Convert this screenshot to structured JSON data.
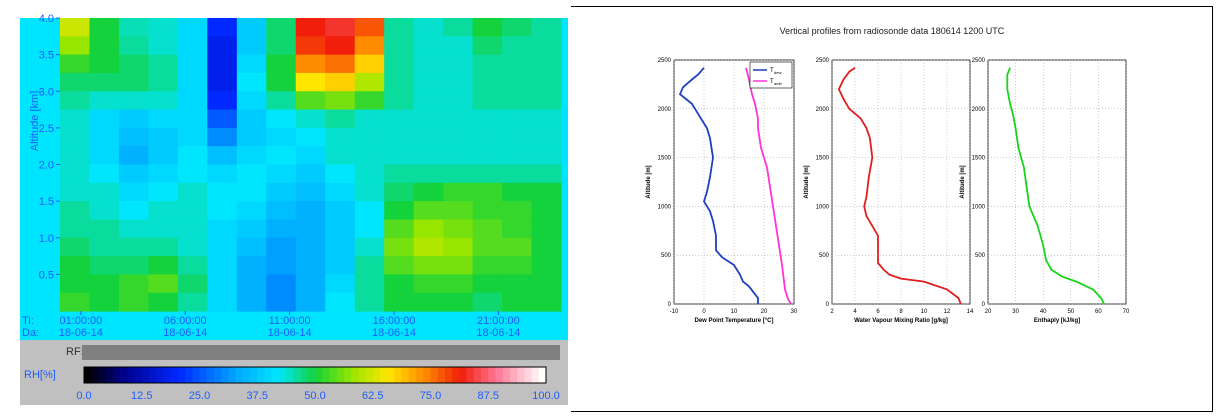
{
  "left_panel": {
    "ylabel": "Altitude [km]",
    "y_ticks": [
      "4.0",
      "3.5",
      "3.0",
      "2.5",
      "2.0",
      "1.5",
      "1.0",
      "0.5"
    ],
    "ti_label": "Ti:",
    "da_label": "Da:",
    "x_times": [
      "01:00:00",
      "06:00:00",
      "11:00:00",
      "16:00:00",
      "21:00:00"
    ],
    "x_dates": [
      "18-06-14",
      "18-06-14",
      "18-06-14",
      "18-06-14",
      "18-06-14"
    ],
    "rf_label": "RF:",
    "rh_label": "RH[%]",
    "colorbar_ticks": [
      "0.0",
      "12.5",
      "25.0",
      "37.5",
      "50.0",
      "62.5",
      "75.0",
      "87.5",
      "100.0"
    ],
    "colors": {
      "panel_bg": "#00e5ff",
      "axis_text": "#1e5cff",
      "frame_bg": "#c0c0c0",
      "bar_gray": "#808080"
    }
  },
  "chart_data": [
    {
      "type": "heatmap",
      "title": "",
      "xlabel": "",
      "ylabel": "Altitude [km]",
      "y_range_km": [
        0,
        4.0
      ],
      "x_range": [
        "18-06-14 00:00",
        "18-06-14 24:00"
      ],
      "colorbar": {
        "label": "RH[%]",
        "range": [
          0,
          100
        ]
      },
      "rows_altitude_km": [
        4.0,
        3.75,
        3.5,
        3.25,
        3.0,
        2.75,
        2.5,
        2.25,
        2.0,
        1.75,
        1.5,
        1.25,
        1.0,
        0.75,
        0.5,
        0.25
      ],
      "cols_hour_utc": [
        0,
        1.5,
        3,
        4.5,
        6,
        7.5,
        9,
        10.5,
        12,
        13.5,
        15,
        16.5,
        18,
        19.5,
        21,
        22.5,
        24
      ],
      "rh_grid": [
        [
          62,
          50,
          45,
          44,
          40,
          20,
          38,
          48,
          82,
          84,
          78,
          46,
          44,
          46,
          50,
          48,
          46
        ],
        [
          58,
          50,
          46,
          44,
          40,
          18,
          38,
          48,
          80,
          82,
          74,
          46,
          44,
          44,
          48,
          46,
          46
        ],
        [
          52,
          50,
          48,
          46,
          40,
          18,
          40,
          50,
          74,
          76,
          68,
          46,
          44,
          44,
          46,
          46,
          46
        ],
        [
          48,
          48,
          48,
          46,
          40,
          18,
          42,
          50,
          66,
          68,
          60,
          46,
          44,
          44,
          46,
          46,
          46
        ],
        [
          46,
          44,
          44,
          44,
          40,
          20,
          40,
          46,
          54,
          56,
          52,
          46,
          44,
          44,
          46,
          46,
          46
        ],
        [
          44,
          40,
          38,
          40,
          40,
          25,
          38,
          42,
          44,
          46,
          44,
          44,
          44,
          44,
          44,
          44,
          44
        ],
        [
          44,
          40,
          36,
          38,
          40,
          30,
          38,
          40,
          42,
          44,
          44,
          44,
          44,
          44,
          44,
          44,
          44
        ],
        [
          44,
          40,
          34,
          38,
          42,
          36,
          40,
          42,
          40,
          44,
          44,
          44,
          44,
          44,
          44,
          44,
          44
        ],
        [
          44,
          42,
          38,
          40,
          42,
          40,
          42,
          40,
          38,
          42,
          44,
          46,
          46,
          46,
          46,
          46,
          46
        ],
        [
          44,
          44,
          40,
          42,
          44,
          42,
          42,
          38,
          36,
          40,
          44,
          48,
          50,
          52,
          52,
          50,
          50
        ],
        [
          46,
          44,
          42,
          44,
          44,
          42,
          40,
          36,
          34,
          38,
          42,
          50,
          54,
          54,
          52,
          52,
          50
        ],
        [
          46,
          46,
          44,
          44,
          44,
          40,
          38,
          34,
          34,
          38,
          42,
          54,
          58,
          56,
          54,
          52,
          50
        ],
        [
          48,
          46,
          46,
          46,
          44,
          40,
          36,
          32,
          34,
          38,
          44,
          56,
          60,
          58,
          54,
          54,
          50
        ],
        [
          50,
          48,
          48,
          50,
          46,
          40,
          34,
          32,
          34,
          38,
          46,
          54,
          56,
          56,
          52,
          52,
          50
        ],
        [
          50,
          50,
          52,
          54,
          48,
          40,
          34,
          30,
          34,
          40,
          46,
          50,
          52,
          52,
          50,
          50,
          50
        ],
        [
          52,
          50,
          52,
          50,
          46,
          40,
          34,
          30,
          34,
          42,
          46,
          50,
          50,
          50,
          48,
          50,
          50
        ]
      ]
    },
    {
      "type": "line",
      "title": "Vertical profiles from radiosonde data 180614 1200 UTC",
      "xlabel": "Dew Point Temperature [°C]",
      "ylabel": "Altitude [m]",
      "xlim": [
        -10,
        30
      ],
      "ylim": [
        0,
        2500
      ],
      "x_ticks": [
        "-10",
        "0",
        "10",
        "20",
        "30"
      ],
      "y_ticks": [
        "0",
        "500",
        "1000",
        "1500",
        "2000",
        "2500"
      ],
      "series": [
        {
          "name": "Tdew",
          "color": "#1f3fbf",
          "points": [
            [
              18,
              0
            ],
            [
              18,
              60
            ],
            [
              15,
              180
            ],
            [
              13,
              230
            ],
            [
              12,
              300
            ],
            [
              10,
              400
            ],
            [
              6,
              480
            ],
            [
              4,
              550
            ],
            [
              4,
              700
            ],
            [
              3,
              850
            ],
            [
              2,
              950
            ],
            [
              0,
              1050
            ],
            [
              1,
              1150
            ],
            [
              2,
              1300
            ],
            [
              3,
              1500
            ],
            [
              2,
              1700
            ],
            [
              1,
              1800
            ],
            [
              0,
              1850
            ],
            [
              -2,
              1950
            ],
            [
              -4,
              2050
            ],
            [
              -6,
              2100
            ],
            [
              -8,
              2150
            ],
            [
              -7,
              2220
            ],
            [
              -4,
              2300
            ],
            [
              -2,
              2350
            ],
            [
              0,
              2420
            ]
          ]
        },
        {
          "name": "Tamb",
          "color": "#ff33d9",
          "points": [
            [
              29,
              0
            ],
            [
              28,
              50
            ],
            [
              27,
              150
            ],
            [
              26,
              400
            ],
            [
              25,
              600
            ],
            [
              24,
              800
            ],
            [
              23,
              1000
            ],
            [
              22,
              1200
            ],
            [
              21,
              1400
            ],
            [
              19,
              1600
            ],
            [
              18,
              1800
            ],
            [
              18,
              1900
            ],
            [
              17,
              2050
            ],
            [
              16,
              2150
            ],
            [
              15,
              2300
            ],
            [
              14,
              2420
            ]
          ]
        }
      ],
      "legend": "top-right"
    },
    {
      "type": "line",
      "title": "",
      "xlabel": "Water Vapour Mixing Ratio [g/kg]",
      "ylabel": "Altitude [m]",
      "xlim": [
        2,
        14
      ],
      "ylim": [
        0,
        2500
      ],
      "x_ticks": [
        "2",
        "4",
        "6",
        "8",
        "10",
        "12",
        "14"
      ],
      "y_ticks": [
        "0",
        "500",
        "1000",
        "1500",
        "2000",
        "2500"
      ],
      "series": [
        {
          "name": "",
          "color": "#e01e1e",
          "points": [
            [
              13.2,
              0
            ],
            [
              13,
              60
            ],
            [
              12,
              150
            ],
            [
              10,
              230
            ],
            [
              8,
              260
            ],
            [
              7,
              300
            ],
            [
              6.5,
              350
            ],
            [
              6,
              420
            ],
            [
              6,
              550
            ],
            [
              6,
              700
            ],
            [
              5.5,
              800
            ],
            [
              5,
              900
            ],
            [
              4.8,
              1000
            ],
            [
              5,
              1100
            ],
            [
              5.2,
              1300
            ],
            [
              5.5,
              1500
            ],
            [
              5.3,
              1700
            ],
            [
              5,
              1800
            ],
            [
              4.5,
              1900
            ],
            [
              3.5,
              2000
            ],
            [
              3,
              2100
            ],
            [
              2.6,
              2200
            ],
            [
              3,
              2300
            ],
            [
              3.5,
              2380
            ],
            [
              4,
              2420
            ]
          ]
        }
      ]
    },
    {
      "type": "line",
      "title": "",
      "xlabel": "Enthaply [kJ/kg]",
      "ylabel": "Altitude [m]",
      "xlim": [
        20,
        70
      ],
      "ylim": [
        0,
        2500
      ],
      "x_ticks": [
        "20",
        "30",
        "40",
        "50",
        "60",
        "70"
      ],
      "y_ticks": [
        "0",
        "500",
        "1000",
        "1500",
        "2000",
        "2500"
      ],
      "series": [
        {
          "name": "",
          "color": "#19d419",
          "points": [
            [
              62,
              0
            ],
            [
              61,
              60
            ],
            [
              58,
              150
            ],
            [
              52,
              230
            ],
            [
              47,
              280
            ],
            [
              43,
              350
            ],
            [
              41,
              450
            ],
            [
              40,
              600
            ],
            [
              38,
              800
            ],
            [
              35,
              1000
            ],
            [
              34,
              1200
            ],
            [
              33,
              1400
            ],
            [
              31,
              1600
            ],
            [
              30,
              1800
            ],
            [
              29,
              1950
            ],
            [
              28,
              2050
            ],
            [
              27,
              2200
            ],
            [
              27,
              2350
            ],
            [
              28,
              2420
            ]
          ]
        }
      ]
    }
  ],
  "right_panel": {
    "legend_tdew_base": "T",
    "legend_tdew_sub": "dew",
    "legend_tamb_base": "T",
    "legend_tamb_sub": "amb"
  }
}
